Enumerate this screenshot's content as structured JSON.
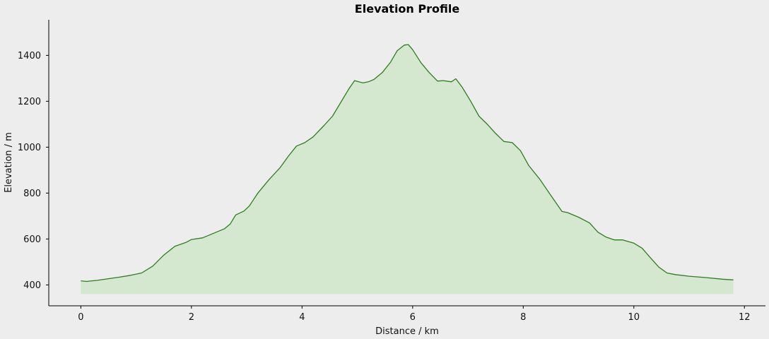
{
  "chart_data": {
    "type": "area",
    "title": "Elevation Profile",
    "xlabel": "Distance / km",
    "ylabel": "Elevation / m",
    "xlim": [
      -0.58,
      12.38
    ],
    "ylim": [
      309,
      1555
    ],
    "x_ticks": [
      0,
      2,
      4,
      6,
      8,
      10,
      12
    ],
    "y_ticks": [
      400,
      600,
      800,
      1000,
      1200,
      1400
    ],
    "fill_baseline": 360,
    "grid": false,
    "colors": {
      "line": "#2e7d1f",
      "fill": "#d4e7cf",
      "background": "#ededed"
    },
    "series": [
      {
        "x": [
          0,
          0.1,
          0.3,
          0.5,
          0.7,
          0.9,
          1.1,
          1.3,
          1.5,
          1.7,
          1.9,
          2.0,
          2.2,
          2.4,
          2.6,
          2.7,
          2.8,
          2.95,
          3.05,
          3.2,
          3.4,
          3.6,
          3.75,
          3.9,
          4.05,
          4.2,
          4.4,
          4.55,
          4.7,
          4.85,
          4.95,
          5.1,
          5.2,
          5.3,
          5.45,
          5.6,
          5.72,
          5.85,
          5.92,
          6.0,
          6.15,
          6.3,
          6.45,
          6.55,
          6.7,
          6.78,
          6.9,
          7.05,
          7.2,
          7.35,
          7.5,
          7.65,
          7.8,
          7.95,
          8.1,
          8.3,
          8.5,
          8.7,
          8.8,
          9.0,
          9.2,
          9.35,
          9.5,
          9.65,
          9.8,
          10.0,
          10.15,
          10.3,
          10.45,
          10.6,
          10.75,
          11.0,
          11.3,
          11.6,
          11.8
        ],
        "values": [
          418,
          415,
          420,
          427,
          434,
          442,
          452,
          482,
          530,
          568,
          585,
          598,
          605,
          625,
          645,
          665,
          705,
          722,
          745,
          800,
          858,
          910,
          960,
          1005,
          1020,
          1045,
          1095,
          1135,
          1195,
          1255,
          1290,
          1280,
          1285,
          1295,
          1325,
          1370,
          1420,
          1445,
          1447,
          1425,
          1368,
          1325,
          1288,
          1290,
          1285,
          1298,
          1260,
          1200,
          1135,
          1100,
          1060,
          1025,
          1020,
          985,
          920,
          860,
          790,
          720,
          715,
          695,
          670,
          630,
          608,
          596,
          596,
          582,
          560,
          518,
          478,
          452,
          445,
          438,
          432,
          425,
          422
        ]
      }
    ]
  }
}
